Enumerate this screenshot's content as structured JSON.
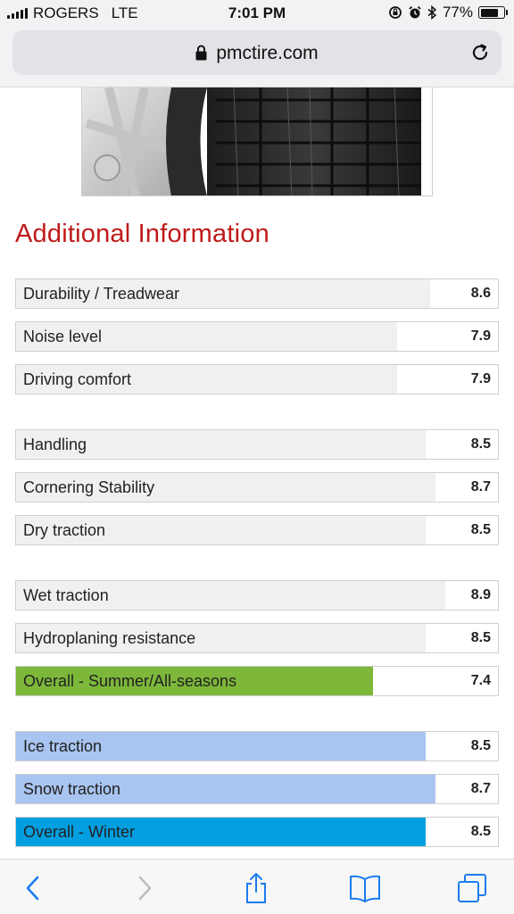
{
  "status_bar": {
    "carrier": "ROGERS",
    "network": "LTE",
    "time": "7:01 PM",
    "battery": "77%",
    "battery_level": 0.77
  },
  "browser": {
    "url": "pmctire.com"
  },
  "page": {
    "section_title": "Additional Information",
    "colors": {
      "title": "#c01a1a",
      "default_bar": "#f0f0f0",
      "summer_bar": "#7db83a",
      "winter_bar": "#a8c4f0",
      "winter_overall_bar": "#029fe0"
    },
    "ratings": [
      {
        "label": "Durability / Treadwear",
        "value": "8.6",
        "fill": 0.86,
        "color": "#f0f0f0"
      },
      {
        "label": "Noise level",
        "value": "7.9",
        "fill": 0.79,
        "color": "#f0f0f0"
      },
      {
        "label": "Driving comfort",
        "value": "7.9",
        "fill": 0.79,
        "color": "#f0f0f0"
      },
      {
        "label": "Handling",
        "value": "8.5",
        "fill": 0.85,
        "color": "#f0f0f0"
      },
      {
        "label": "Cornering Stability",
        "value": "8.7",
        "fill": 0.87,
        "color": "#f0f0f0"
      },
      {
        "label": "Dry traction",
        "value": "8.5",
        "fill": 0.85,
        "color": "#f0f0f0"
      },
      {
        "label": "Wet traction",
        "value": "8.9",
        "fill": 0.89,
        "color": "#f0f0f0"
      },
      {
        "label": "Hydroplaning resistance",
        "value": "8.5",
        "fill": 0.85,
        "color": "#f0f0f0"
      },
      {
        "label": "Overall - Summer/All-seasons",
        "value": "7.4",
        "fill": 0.74,
        "color": "#7db83a"
      },
      {
        "label": "Ice traction",
        "value": "8.5",
        "fill": 0.85,
        "color": "#a8c4f0"
      },
      {
        "label": "Snow traction",
        "value": "8.7",
        "fill": 0.87,
        "color": "#a8c4f0"
      },
      {
        "label": "Overall - Winter",
        "value": "8.5",
        "fill": 0.85,
        "color": "#029fe0"
      }
    ]
  },
  "toolbar": {
    "icons": [
      "back-icon",
      "forward-icon",
      "share-icon",
      "bookmarks-icon",
      "tabs-icon"
    ]
  }
}
